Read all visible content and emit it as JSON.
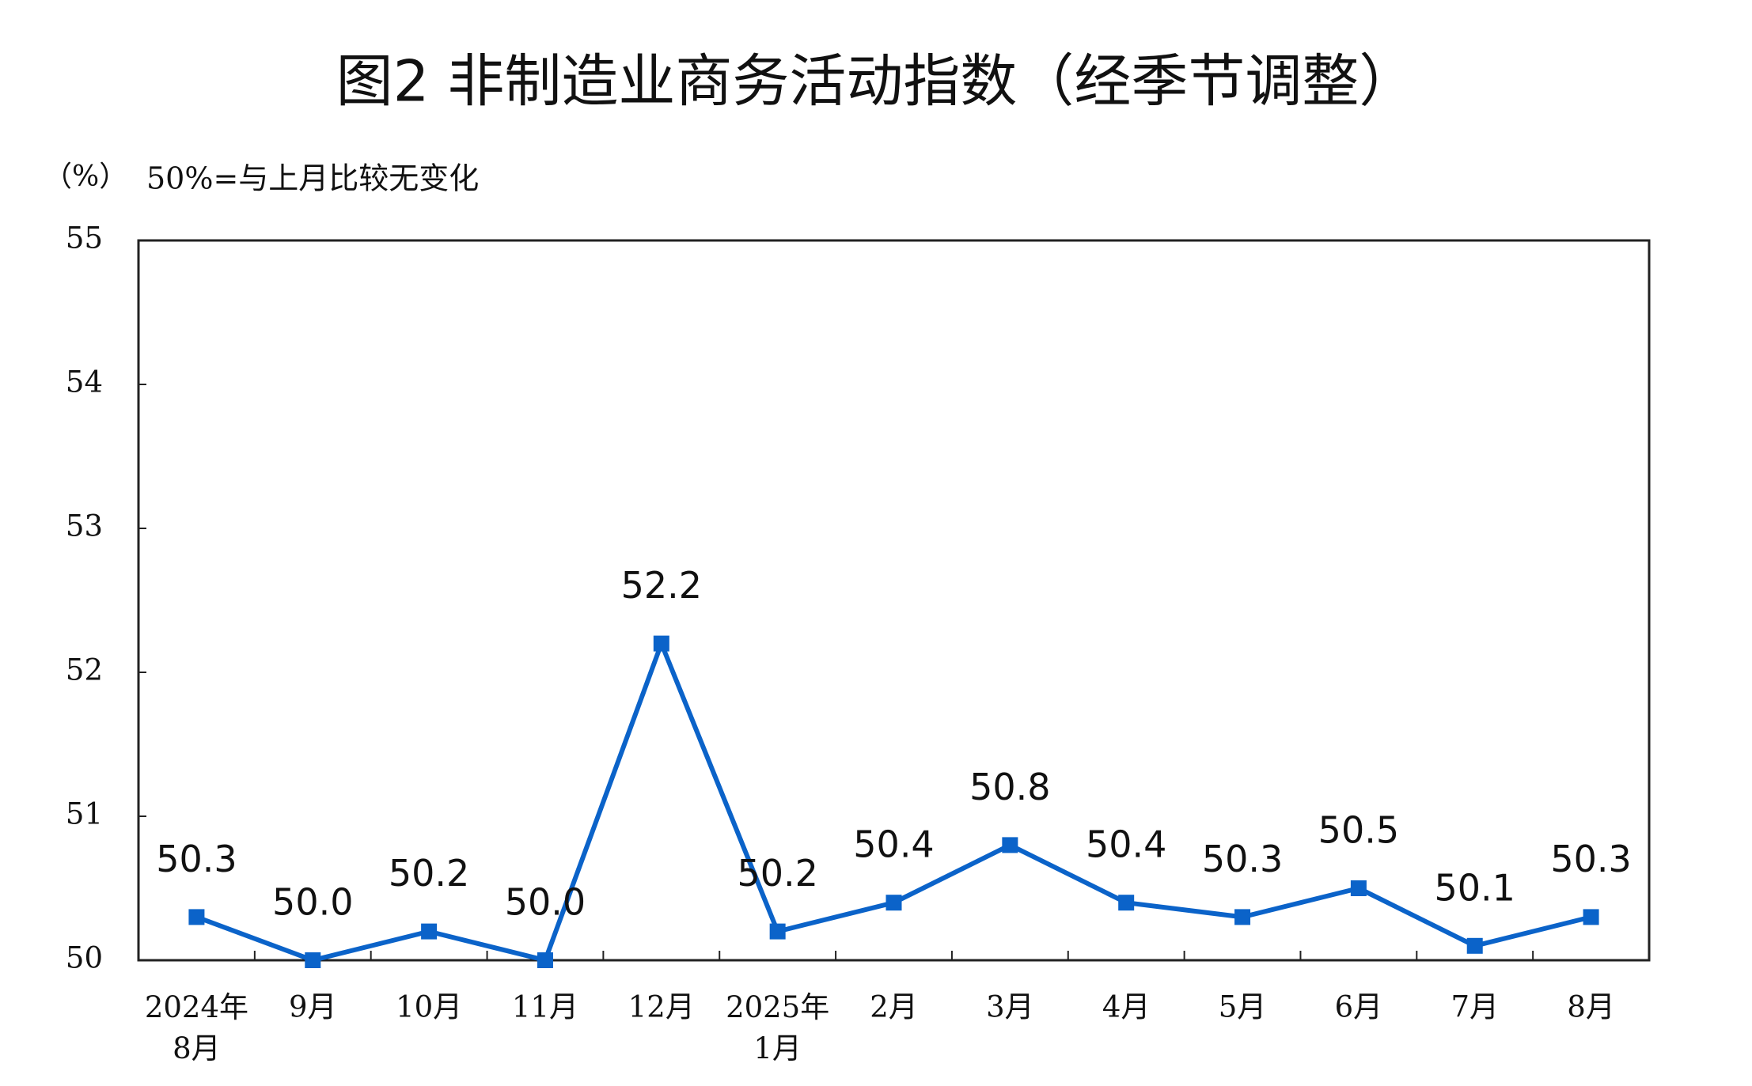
{
  "chart_data": {
    "type": "line",
    "title": "图2  非制造业商务活动指数（经季节调整）",
    "y_unit": "（%）",
    "note": "50%=与上月比较无变化",
    "categories": [
      "2024年8月",
      "9月",
      "10月",
      "11月",
      "12月",
      "2025年1月",
      "2月",
      "3月",
      "4月",
      "5月",
      "6月",
      "7月",
      "8月"
    ],
    "series": [
      {
        "name": "非制造业商务活动指数",
        "color": "#0b63c9",
        "values": [
          50.3,
          50.0,
          50.2,
          50.0,
          52.2,
          50.2,
          50.4,
          50.8,
          50.4,
          50.3,
          50.5,
          50.1,
          50.3
        ],
        "value_labels": [
          "50.3",
          "50.0",
          "50.2",
          "50.0",
          "52.2",
          "50.2",
          "50.4",
          "50.8",
          "50.4",
          "50.3",
          "50.5",
          "50.1",
          "50.3"
        ]
      }
    ],
    "ylim": [
      50,
      55
    ],
    "yticks": [
      50,
      51,
      52,
      53,
      54,
      55
    ],
    "grid": false
  }
}
